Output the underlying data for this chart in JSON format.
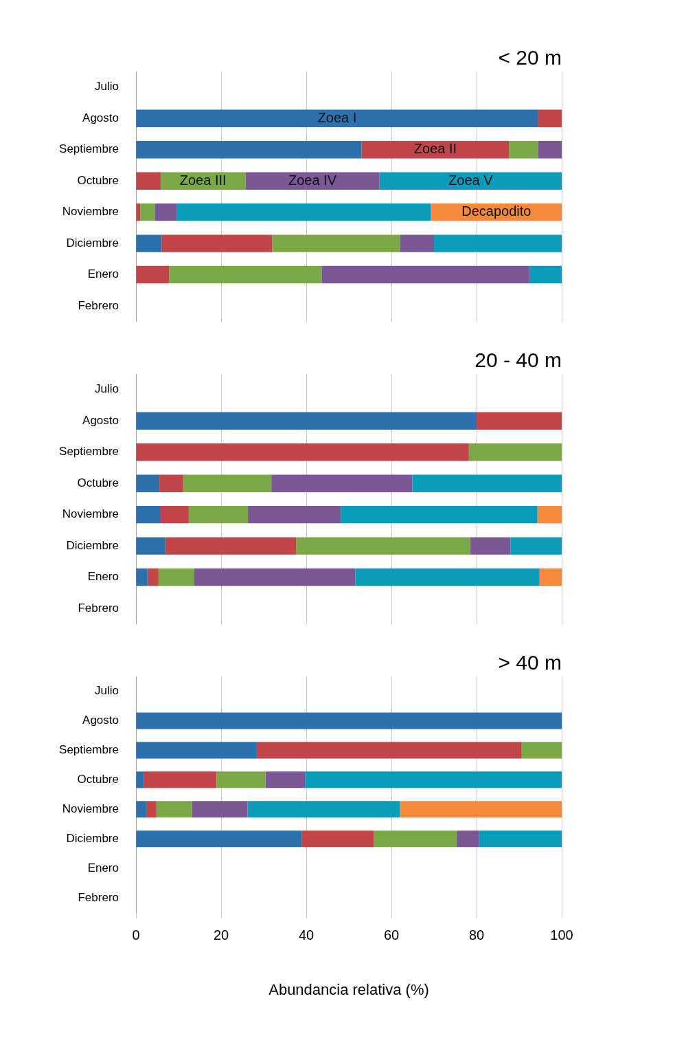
{
  "chart_data": [
    {
      "type": "bar",
      "orientation": "horizontal",
      "stacked": true,
      "title": "< 20 m",
      "tick_labels": "y",
      "grid": "x",
      "legend": false,
      "xlim": [
        0,
        100
      ],
      "xticks": [
        0,
        20,
        40,
        60,
        80,
        100
      ],
      "categories": [
        "Julio",
        "Agosto",
        "Septiembre",
        "Octubre",
        "Noviembre",
        "Diciembre",
        "Enero",
        "Febrero"
      ],
      "series": [
        {
          "name": "Zoea I",
          "color": "#2a71ae",
          "values": [
            null,
            94.5,
            53,
            0,
            0,
            6,
            0,
            null
          ]
        },
        {
          "name": "Zoea II",
          "color": "#c0464a",
          "values": [
            null,
            5.5,
            34.6,
            5.8,
            1,
            26,
            7.8,
            null
          ]
        },
        {
          "name": "Zoea III",
          "color": "#7aa845",
          "values": [
            null,
            0,
            6.9,
            19.9,
            3.4,
            30,
            35.8,
            null
          ]
        },
        {
          "name": "Zoea IV",
          "color": "#7b5796",
          "values": [
            null,
            0,
            5.5,
            31.5,
            5.1,
            8,
            48.8,
            null
          ]
        },
        {
          "name": "Zoea V",
          "color": "#0b9bbb",
          "values": [
            null,
            0,
            0,
            42.8,
            59.8,
            30,
            7.6,
            null
          ]
        },
        {
          "name": "Decapodito",
          "color": "#f58a3b",
          "values": [
            null,
            0,
            0,
            0,
            30.7,
            0,
            0,
            null
          ]
        }
      ]
    },
    {
      "type": "bar",
      "orientation": "horizontal",
      "stacked": true,
      "title": "20 - 40 m",
      "tick_labels": "y",
      "grid": "x",
      "legend": false,
      "xlim": [
        0,
        100
      ],
      "xticks": [
        0,
        20,
        40,
        60,
        80,
        100
      ],
      "categories": [
        "Julio",
        "Agosto",
        "Septiembre",
        "Octubre",
        "Noviembre",
        "Diciembre",
        "Enero",
        "Febrero"
      ],
      "series": [
        {
          "color": "#2a71ae",
          "values": [
            null,
            80,
            0,
            5.5,
            5.8,
            6.9,
            2.7,
            null
          ]
        },
        {
          "color": "#c0464a",
          "values": [
            null,
            20,
            78.2,
            5.6,
            6.6,
            30.7,
            2.6,
            null
          ]
        },
        {
          "color": "#7aa845",
          "values": [
            null,
            0,
            21.8,
            20.7,
            13.9,
            40.9,
            8.4,
            null
          ]
        },
        {
          "color": "#7b5796",
          "values": [
            null,
            0,
            0,
            33.1,
            21.8,
            9.5,
            37.8,
            null
          ]
        },
        {
          "color": "#0b9bbb",
          "values": [
            null,
            0,
            0,
            35.1,
            46.2,
            12,
            43.3,
            null
          ]
        },
        {
          "color": "#f58a3b",
          "values": [
            null,
            0,
            0,
            0,
            5.7,
            0,
            5.2,
            null
          ]
        }
      ]
    },
    {
      "type": "bar",
      "orientation": "horizontal",
      "stacked": true,
      "title": "> 40 m",
      "xlabel": "Abundancia relativa (%)",
      "grid": "x",
      "legend": false,
      "xlim": [
        0,
        100
      ],
      "xticks": [
        0,
        20,
        40,
        60,
        80,
        100
      ],
      "categories": [
        "Julio",
        "Agosto",
        "Septiembre",
        "Octubre",
        "Noviembre",
        "Diciembre",
        "Enero",
        "Febrero"
      ],
      "series": [
        {
          "color": "#2a71ae",
          "values": [
            null,
            100,
            28.4,
            1.8,
            2.4,
            38.9,
            null,
            null
          ]
        },
        {
          "color": "#c0464a",
          "values": [
            null,
            0,
            62.2,
            17.1,
            2.4,
            17,
            null,
            null
          ]
        },
        {
          "color": "#7aa845",
          "values": [
            null,
            0,
            9.4,
            11.5,
            8.4,
            19.4,
            null,
            null
          ]
        },
        {
          "color": "#7b5796",
          "values": [
            null,
            0,
            0,
            9.3,
            13,
            5.2,
            null,
            null
          ]
        },
        {
          "color": "#0b9bbb",
          "values": [
            null,
            0,
            0,
            60.3,
            35.8,
            19.5,
            null,
            null
          ]
        },
        {
          "color": "#f58a3b",
          "values": [
            null,
            0,
            0,
            0,
            38,
            0,
            null,
            null
          ]
        }
      ]
    }
  ]
}
